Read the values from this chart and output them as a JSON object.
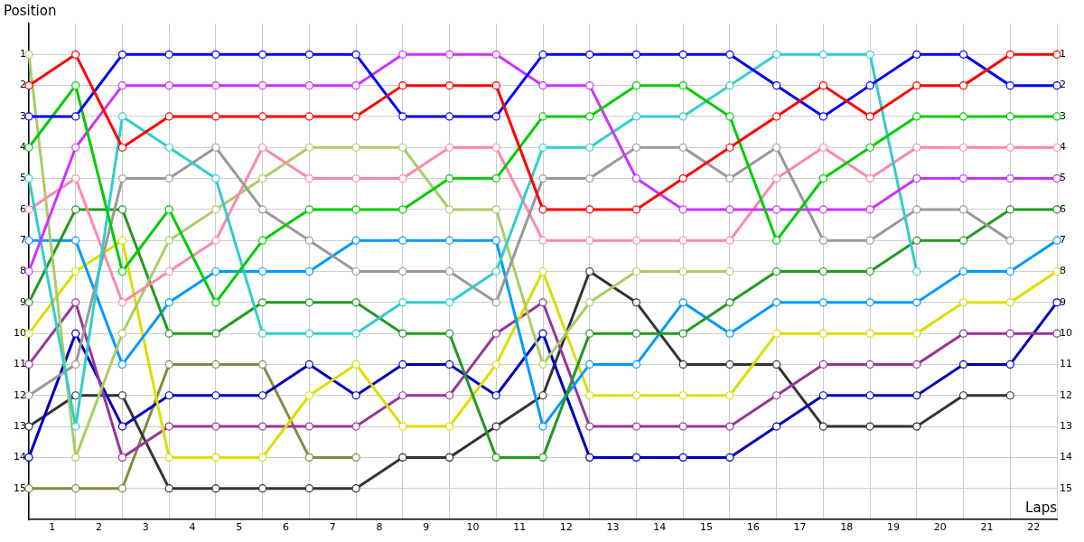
{
  "chart_data": {
    "type": "line",
    "xlabel": "Laps",
    "ylabel": "Position",
    "x": [
      0,
      1,
      2,
      3,
      4,
      5,
      6,
      7,
      8,
      9,
      10,
      11,
      12,
      13,
      14,
      15,
      16,
      17,
      18,
      19,
      20,
      21,
      22
    ],
    "xlim": [
      0,
      22
    ],
    "xticks": [
      {
        "value": 0,
        "label": null
      },
      {
        "value": 0.5,
        "label": "1"
      },
      {
        "value": 1,
        "label": null
      },
      {
        "value": 1.5,
        "label": "2"
      },
      {
        "value": 2,
        "label": null
      },
      {
        "value": 2.5,
        "label": "3"
      },
      {
        "value": 3,
        "label": null
      },
      {
        "value": 3.5,
        "label": "4"
      },
      {
        "value": 4,
        "label": null
      },
      {
        "value": 4.5,
        "label": "5"
      },
      {
        "value": 5,
        "label": null
      },
      {
        "value": 5.5,
        "label": "6"
      },
      {
        "value": 6,
        "label": null
      },
      {
        "value": 6.5,
        "label": "7"
      },
      {
        "value": 7,
        "label": null
      },
      {
        "value": 7.5,
        "label": "8"
      },
      {
        "value": 8,
        "label": null
      },
      {
        "value": 8.5,
        "label": "9"
      },
      {
        "value": 9,
        "label": null
      },
      {
        "value": 9.5,
        "label": "10"
      },
      {
        "value": 10,
        "label": null
      },
      {
        "value": 10.5,
        "label": "11"
      },
      {
        "value": 11,
        "label": null
      },
      {
        "value": 11.5,
        "label": "12"
      },
      {
        "value": 12,
        "label": null
      },
      {
        "value": 12.5,
        "label": "13"
      },
      {
        "value": 13,
        "label": null
      },
      {
        "value": 13.5,
        "label": "14"
      },
      {
        "value": 14,
        "label": null
      },
      {
        "value": 14.5,
        "label": "15"
      },
      {
        "value": 15,
        "label": null
      },
      {
        "value": 15.5,
        "label": "16"
      },
      {
        "value": 16,
        "label": null
      },
      {
        "value": 16.5,
        "label": "17"
      },
      {
        "value": 17,
        "label": null
      },
      {
        "value": 17.5,
        "label": "18"
      },
      {
        "value": 18,
        "label": null
      },
      {
        "value": 18.5,
        "label": "19"
      },
      {
        "value": 19,
        "label": null
      },
      {
        "value": 19.5,
        "label": "20"
      },
      {
        "value": 20,
        "label": null
      },
      {
        "value": 20.5,
        "label": "21"
      },
      {
        "value": 21,
        "label": null
      },
      {
        "value": 21.5,
        "label": "22"
      },
      {
        "value": 22,
        "label": null
      }
    ],
    "ylim": [
      16,
      0
    ],
    "yticks": [
      1,
      2,
      3,
      4,
      5,
      6,
      7,
      8,
      9,
      10,
      11,
      12,
      13,
      14,
      15
    ],
    "y2lim": [
      16,
      0
    ],
    "y2ticks": [
      1,
      2,
      3,
      4,
      5,
      6,
      7,
      8,
      9,
      10,
      11,
      12,
      13,
      14,
      15
    ],
    "grid": true,
    "legend": false,
    "marker": "circle",
    "line_style": "solid",
    "series": [
      {
        "color": "#ff0000",
        "values": [
          2,
          1,
          4,
          3,
          3,
          3,
          3,
          3,
          2,
          2,
          2,
          6,
          6,
          6,
          5,
          4,
          3,
          2,
          3,
          2,
          2,
          1,
          1
        ]
      },
      {
        "color": "#0000ff",
        "values": [
          3,
          3,
          1,
          1,
          1,
          1,
          1,
          1,
          3,
          3,
          3,
          1,
          1,
          1,
          1,
          1,
          2,
          3,
          2,
          1,
          1,
          2,
          2
        ]
      },
      {
        "color": "#00cc00",
        "values": [
          4,
          2,
          8,
          6,
          9,
          7,
          6,
          6,
          6,
          5,
          5,
          3,
          3,
          2,
          2,
          3,
          7,
          5,
          4,
          3,
          3,
          3,
          3
        ]
      },
      {
        "color": "#cc33ff",
        "values": [
          8,
          4,
          2,
          2,
          2,
          2,
          2,
          2,
          1,
          1,
          1,
          2,
          2,
          5,
          6,
          6,
          6,
          6,
          6,
          5,
          5,
          5,
          5
        ]
      },
      {
        "color": "#33cccc",
        "values": [
          5,
          13,
          3,
          4,
          5,
          10,
          10,
          10,
          9,
          9,
          8,
          4,
          4,
          3,
          3,
          2,
          1,
          1,
          1,
          8,
          null,
          null,
          null
        ]
      },
      {
        "color": "#999999",
        "values": [
          12,
          11,
          5,
          5,
          4,
          6,
          7,
          8,
          8,
          8,
          9,
          5,
          5,
          4,
          4,
          5,
          4,
          7,
          7,
          6,
          6,
          7,
          null
        ]
      },
      {
        "color": "#ff88aa",
        "values": [
          6,
          5,
          9,
          8,
          7,
          4,
          5,
          5,
          5,
          4,
          4,
          7,
          7,
          7,
          7,
          7,
          5,
          4,
          5,
          4,
          4,
          4,
          4
        ]
      },
      {
        "color": "#aacc66",
        "values": [
          1,
          14,
          10,
          7,
          6,
          5,
          4,
          4,
          4,
          6,
          6,
          11,
          9,
          8,
          8,
          8,
          null,
          null,
          null,
          null,
          null,
          null,
          null
        ]
      },
      {
        "color": "#229922",
        "values": [
          9,
          6,
          6,
          10,
          10,
          9,
          9,
          9,
          10,
          10,
          14,
          14,
          10,
          10,
          10,
          9,
          8,
          8,
          8,
          7,
          7,
          6,
          6
        ]
      },
      {
        "color": "#0099ff",
        "values": [
          7,
          7,
          11,
          9,
          8,
          8,
          8,
          7,
          7,
          7,
          7,
          13,
          11,
          11,
          9,
          10,
          9,
          9,
          9,
          9,
          8,
          8,
          7
        ]
      },
      {
        "color": "#dddd00",
        "values": [
          10,
          8,
          7,
          14,
          14,
          14,
          12,
          11,
          13,
          13,
          11,
          8,
          12,
          12,
          12,
          12,
          10,
          10,
          10,
          10,
          9,
          9,
          8
        ]
      },
      {
        "color": "#993399",
        "values": [
          11,
          9,
          14,
          13,
          13,
          13,
          13,
          13,
          12,
          12,
          10,
          9,
          13,
          13,
          13,
          13,
          12,
          11,
          11,
          11,
          10,
          10,
          10
        ]
      },
      {
        "color": "#0000bb",
        "values": [
          14,
          10,
          13,
          12,
          12,
          12,
          11,
          12,
          11,
          11,
          12,
          10,
          14,
          14,
          14,
          14,
          13,
          12,
          12,
          12,
          11,
          11,
          9
        ]
      },
      {
        "color": "#333333",
        "values": [
          13,
          12,
          12,
          15,
          15,
          15,
          15,
          15,
          14,
          14,
          13,
          12,
          8,
          9,
          11,
          11,
          11,
          13,
          13,
          13,
          12,
          12,
          null
        ]
      },
      {
        "color": "#888844",
        "values": [
          15,
          15,
          15,
          11,
          11,
          11,
          14,
          14,
          null,
          null,
          null,
          null,
          null,
          null,
          null,
          null,
          null,
          null,
          null,
          null,
          null,
          null,
          null
        ]
      }
    ]
  }
}
